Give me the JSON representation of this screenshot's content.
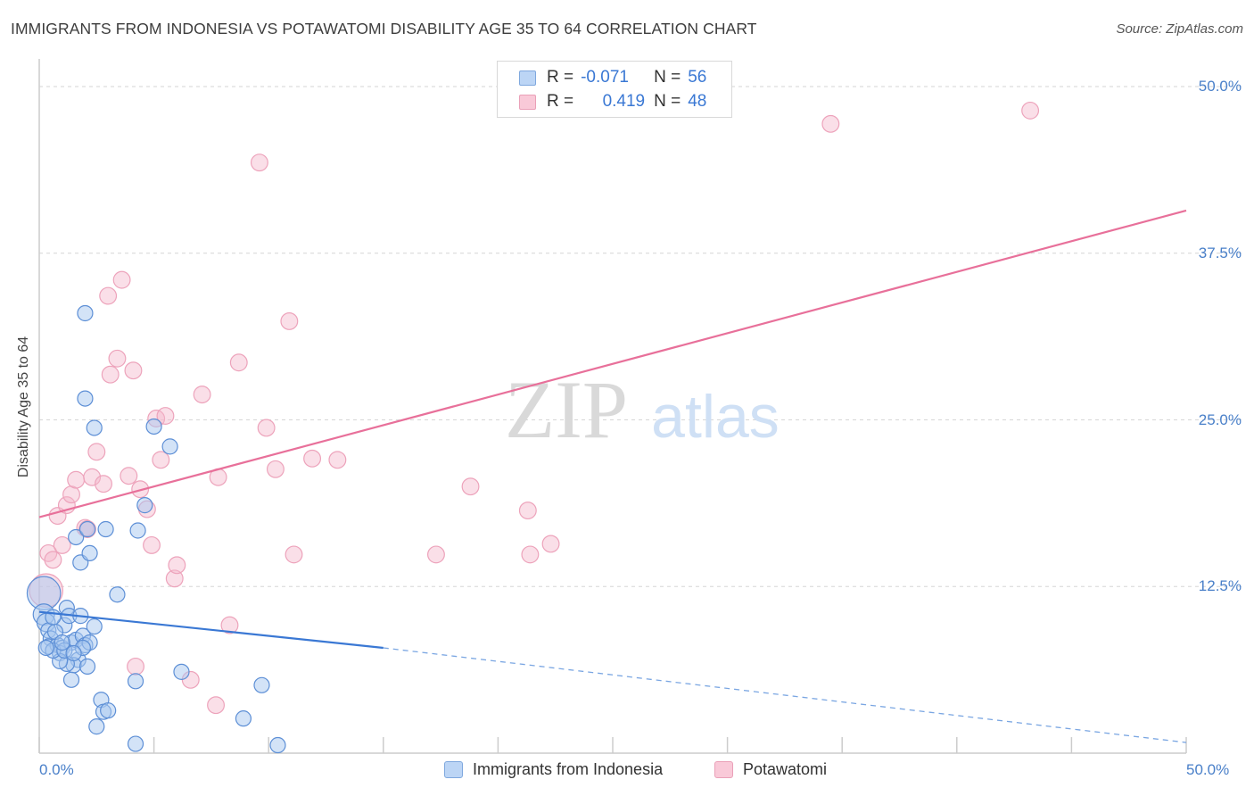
{
  "title": "IMMIGRANTS FROM INDONESIA VS POTAWATOMI DISABILITY AGE 35 TO 64 CORRELATION CHART",
  "source": "Source: ZipAtlas.com",
  "watermark": {
    "zip": "ZIP",
    "atlas": "atlas"
  },
  "colors": {
    "blue": "#3a78d4",
    "blue_fill": "#a8c8f0",
    "pink": "#e8709a",
    "pink_fill": "#f5b8cc",
    "tick": "#4a80c9"
  },
  "legend": {
    "rows": [
      {
        "r_label": "R =",
        "r_value": "-0.071",
        "n_label": "N =",
        "n_value": "56"
      },
      {
        "r_label": "R =",
        "r_value": "0.419",
        "n_label": "N =",
        "n_value": "48"
      }
    ]
  },
  "bottom_legend": [
    "Immigrants from Indonesia",
    "Potawatomi"
  ],
  "chart_data": {
    "type": "scatter",
    "ylabel": "Disability Age 35 to 64",
    "xlim": [
      0,
      50
    ],
    "ylim": [
      0,
      50
    ],
    "x_tick_labels": [
      "0.0%",
      "50.0%"
    ],
    "y_ticks": [
      12.5,
      25.0,
      37.5,
      50.0
    ],
    "y_tick_labels": [
      "12.5%",
      "25.0%",
      "37.5%",
      "50.0%"
    ],
    "series": [
      {
        "name": "Immigrants from Indonesia",
        "r": -0.071,
        "n": 56,
        "trend": {
          "x0": 0,
          "y0": 10.6,
          "x1": 15,
          "y1": 7.9,
          "dashed_to_x": 50,
          "dashed_to_y": 0.8
        },
        "points": [
          [
            0.2,
            12.0,
            22
          ],
          [
            0.2,
            10.4,
            14
          ],
          [
            0.3,
            9.8,
            12
          ],
          [
            0.4,
            9.2,
            10
          ],
          [
            0.5,
            8.6,
            10
          ],
          [
            0.4,
            8.0,
            10
          ],
          [
            0.8,
            8.1,
            10
          ],
          [
            1.0,
            7.9,
            10
          ],
          [
            0.9,
            7.5,
            10
          ],
          [
            1.1,
            9.6,
            10
          ],
          [
            1.2,
            10.9,
            10
          ],
          [
            1.3,
            10.3,
            10
          ],
          [
            1.4,
            8.3,
            10
          ],
          [
            1.6,
            8.5,
            10
          ],
          [
            1.7,
            7.0,
            10
          ],
          [
            1.5,
            6.6,
            10
          ],
          [
            1.8,
            10.3,
            10
          ],
          [
            1.9,
            8.8,
            10
          ],
          [
            2.0,
            8.1,
            10
          ],
          [
            2.1,
            6.5,
            10
          ],
          [
            2.2,
            8.3,
            10
          ],
          [
            2.4,
            9.5,
            10
          ],
          [
            1.4,
            5.5,
            10
          ],
          [
            1.2,
            6.7,
            10
          ],
          [
            0.9,
            6.9,
            10
          ],
          [
            1.6,
            16.2,
            10
          ],
          [
            1.8,
            14.3,
            10
          ],
          [
            2.1,
            16.8,
            10
          ],
          [
            2.2,
            15.0,
            10
          ],
          [
            2.0,
            33.0,
            10
          ],
          [
            2.0,
            26.6,
            10
          ],
          [
            2.4,
            24.4,
            10
          ],
          [
            2.7,
            4.0,
            10
          ],
          [
            2.8,
            3.1,
            10
          ],
          [
            3.0,
            3.2,
            10
          ],
          [
            2.5,
            2.0,
            10
          ],
          [
            2.9,
            16.8,
            10
          ],
          [
            3.4,
            11.9,
            10
          ],
          [
            4.3,
            16.7,
            10
          ],
          [
            4.6,
            18.6,
            10
          ],
          [
            5.0,
            24.5,
            10
          ],
          [
            5.7,
            23.0,
            10
          ],
          [
            6.2,
            6.1,
            10
          ],
          [
            4.2,
            5.4,
            10
          ],
          [
            4.2,
            0.7,
            10
          ],
          [
            8.9,
            2.6,
            10
          ],
          [
            9.7,
            5.1,
            10
          ],
          [
            10.4,
            0.6,
            10
          ],
          [
            0.6,
            7.7,
            10
          ],
          [
            0.7,
            9.1,
            10
          ],
          [
            1.9,
            7.9,
            10
          ],
          [
            0.3,
            7.9,
            10
          ],
          [
            0.6,
            10.2,
            10
          ],
          [
            1.1,
            7.7,
            10
          ],
          [
            1.5,
            7.5,
            10
          ],
          [
            1.0,
            8.3,
            10
          ]
        ]
      },
      {
        "name": "Potawatomi",
        "r": 0.419,
        "n": 48,
        "trend": {
          "x0": 0,
          "y0": 17.7,
          "x1": 50,
          "y1": 40.7
        },
        "points": [
          [
            0.3,
            12.2,
            22
          ],
          [
            0.4,
            15.0,
            11
          ],
          [
            0.6,
            14.5,
            11
          ],
          [
            0.8,
            17.8,
            11
          ],
          [
            1.0,
            15.6,
            11
          ],
          [
            1.2,
            18.6,
            11
          ],
          [
            1.4,
            19.4,
            11
          ],
          [
            1.6,
            20.5,
            11
          ],
          [
            2.0,
            16.9,
            11
          ],
          [
            2.1,
            16.8,
            11
          ],
          [
            2.3,
            20.7,
            11
          ],
          [
            2.5,
            22.6,
            11
          ],
          [
            2.8,
            20.2,
            11
          ],
          [
            3.0,
            34.3,
            11
          ],
          [
            3.1,
            28.4,
            11
          ],
          [
            3.4,
            29.6,
            11
          ],
          [
            3.6,
            35.5,
            11
          ],
          [
            3.9,
            20.8,
            11
          ],
          [
            4.1,
            28.7,
            11
          ],
          [
            4.4,
            19.8,
            11
          ],
          [
            4.7,
            18.3,
            11
          ],
          [
            4.9,
            15.6,
            11
          ],
          [
            5.1,
            25.1,
            11
          ],
          [
            5.3,
            22.0,
            11
          ],
          [
            5.5,
            25.3,
            11
          ],
          [
            5.9,
            13.1,
            11
          ],
          [
            6.0,
            14.1,
            11
          ],
          [
            7.1,
            26.9,
            11
          ],
          [
            7.8,
            20.7,
            11
          ],
          [
            8.3,
            9.6,
            11
          ],
          [
            8.7,
            29.3,
            11
          ],
          [
            9.6,
            44.3,
            11
          ],
          [
            9.9,
            24.4,
            11
          ],
          [
            10.3,
            21.3,
            11
          ],
          [
            10.9,
            32.4,
            11
          ],
          [
            11.1,
            14.9,
            11
          ],
          [
            11.9,
            22.1,
            11
          ],
          [
            13.0,
            22.0,
            11
          ],
          [
            17.3,
            14.9,
            11
          ],
          [
            18.8,
            20.0,
            11
          ],
          [
            21.3,
            18.2,
            11
          ],
          [
            21.4,
            14.9,
            11
          ],
          [
            22.3,
            15.7,
            11
          ],
          [
            34.5,
            47.2,
            11
          ],
          [
            43.2,
            48.2,
            11
          ],
          [
            4.2,
            6.5,
            11
          ],
          [
            6.6,
            5.5,
            11
          ],
          [
            7.7,
            3.6,
            11
          ]
        ]
      }
    ]
  }
}
